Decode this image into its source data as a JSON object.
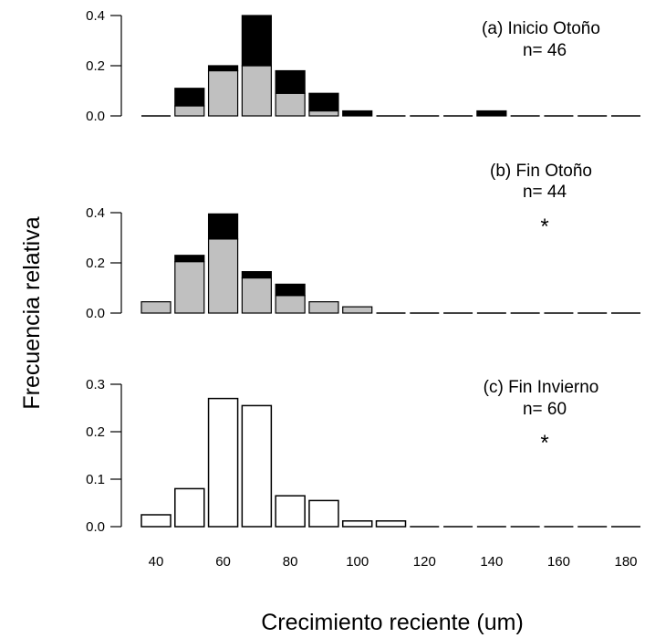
{
  "chart_data": {
    "type": "bar",
    "ylabel": "Frecuencia relativa",
    "xlabel": "Crecimiento reciente (um)",
    "x_ticks": [
      "40",
      "60",
      "80",
      "100",
      "120",
      "140",
      "160",
      "180"
    ],
    "x_tick_values": [
      40,
      60,
      80,
      100,
      120,
      140,
      160,
      180
    ],
    "bin_width": 10,
    "colors": {
      "stack_bottom": "#c0c0c0",
      "stack_top": "#000000",
      "open_bar": "#ffffff",
      "stroke": "#000000"
    },
    "panels": [
      {
        "annotation": "(a) Inicio Otoño",
        "n_label": "n= 46",
        "star": "",
        "ylim": [
          0,
          0.4
        ],
        "y_ticks": [
          "0.0",
          "0.2",
          "0.4"
        ],
        "y_tick_values": [
          0,
          0.2,
          0.4
        ],
        "style": "stacked",
        "bins": [
          40,
          50,
          60,
          70,
          80,
          90,
          100,
          110,
          120,
          130,
          140,
          150,
          160,
          170,
          180
        ],
        "series": [
          {
            "values": [
              0,
              0.04,
              0.18,
              0.2,
              0.09,
              0.02,
              0,
              0,
              0,
              0,
              0,
              0,
              0,
              0,
              0
            ]
          },
          {
            "values": [
              0,
              0.07,
              0.02,
              0.2,
              0.09,
              0.07,
              0.02,
              0,
              0,
              0,
              0.02,
              0,
              0,
              0,
              0
            ]
          }
        ]
      },
      {
        "annotation": "(b) Fin Otoño",
        "n_label": "n= 44",
        "star": "*",
        "ylim": [
          0,
          0.4
        ],
        "y_ticks": [
          "0.0",
          "0.2",
          "0.4"
        ],
        "y_tick_values": [
          0,
          0.2,
          0.4
        ],
        "style": "stacked",
        "bins": [
          40,
          50,
          60,
          70,
          80,
          90,
          100,
          110,
          120,
          130,
          140,
          150,
          160,
          170,
          180
        ],
        "series": [
          {
            "values": [
              0.045,
              0.205,
              0.295,
              0.14,
              0.07,
              0.045,
              0.025,
              0,
              0,
              0,
              0,
              0,
              0,
              0,
              0
            ]
          },
          {
            "values": [
              0,
              0.025,
              0.1,
              0.025,
              0.045,
              0,
              0,
              0,
              0,
              0,
              0,
              0,
              0,
              0,
              0
            ]
          }
        ]
      },
      {
        "annotation": "(c) Fin Invierno",
        "n_label": "n= 60",
        "star": "*",
        "ylim": [
          0,
          0.3
        ],
        "y_ticks": [
          "0.0",
          "0.1",
          "0.2",
          "0.3"
        ],
        "y_tick_values": [
          0,
          0.1,
          0.2,
          0.3
        ],
        "style": "open",
        "bins": [
          40,
          50,
          60,
          70,
          80,
          90,
          100,
          110,
          120,
          130,
          140,
          150,
          160,
          170,
          180
        ],
        "series": [
          {
            "values": [
              0.025,
              0.08,
              0.27,
              0.255,
              0.065,
              0.055,
              0.012,
              0.012,
              0,
              0,
              0,
              0,
              0,
              0,
              0
            ]
          }
        ]
      }
    ]
  }
}
